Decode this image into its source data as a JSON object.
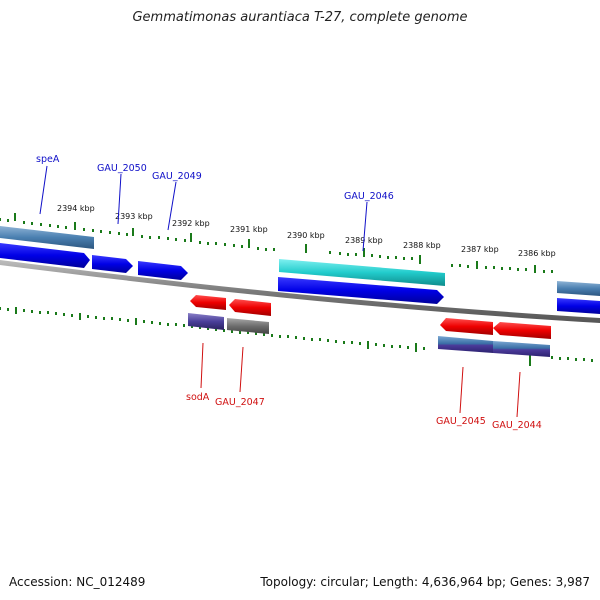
{
  "title": "Gemmatimonas aurantiaca T-27, complete genome",
  "accession": "Accession: NC_012489",
  "topology": "Topology: circular; Length: 4,636,964 bp; Genes: 3,987",
  "colors": {
    "forward_label": "#1010c8",
    "reverse_label": "#d01010",
    "forward_gene": "#0a0ae8",
    "reverse_gene": "#ee1010",
    "tick": "#1a7a1a",
    "backbone": "#808080"
  },
  "scale_labels": [
    "2394 kbp",
    "2393 kbp",
    "2392 kbp",
    "2391 kbp",
    "2390 kbp",
    "2389 kbp",
    "2388 kbp",
    "2387 kbp",
    "2386 kbp"
  ],
  "forward_labels": [
    "speA",
    "GAU_2050",
    "GAU_2049",
    "GAU_2046"
  ],
  "reverse_labels": [
    "sodA",
    "GAU_2047",
    "GAU_2045",
    "GAU_2044"
  ]
}
